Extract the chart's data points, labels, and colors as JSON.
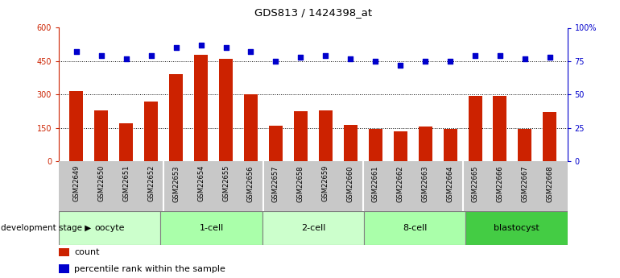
{
  "title": "GDS813 / 1424398_at",
  "samples": [
    "GSM22649",
    "GSM22650",
    "GSM22651",
    "GSM22652",
    "GSM22653",
    "GSM22654",
    "GSM22655",
    "GSM22656",
    "GSM22657",
    "GSM22658",
    "GSM22659",
    "GSM22660",
    "GSM22661",
    "GSM22662",
    "GSM22663",
    "GSM22664",
    "GSM22665",
    "GSM22666",
    "GSM22667",
    "GSM22668"
  ],
  "counts": [
    315,
    230,
    170,
    270,
    390,
    480,
    460,
    300,
    160,
    225,
    230,
    165,
    145,
    135,
    155,
    145,
    295,
    295,
    145,
    220
  ],
  "percentiles": [
    82,
    79,
    77,
    79,
    85,
    87,
    85,
    82,
    75,
    78,
    79,
    77,
    75,
    72,
    75,
    75,
    79,
    79,
    77,
    78
  ],
  "groups": [
    {
      "name": "oocyte",
      "start": 0,
      "end": 3,
      "color": "#ccffcc"
    },
    {
      "name": "1-cell",
      "start": 4,
      "end": 7,
      "color": "#aaffaa"
    },
    {
      "name": "2-cell",
      "start": 8,
      "end": 11,
      "color": "#ccffcc"
    },
    {
      "name": "8-cell",
      "start": 12,
      "end": 15,
      "color": "#aaffaa"
    },
    {
      "name": "blastocyst",
      "start": 16,
      "end": 19,
      "color": "#44cc44"
    }
  ],
  "bar_color": "#cc2200",
  "dot_color": "#0000cc",
  "ylim_left": [
    0,
    600
  ],
  "ylim_right": [
    0,
    100
  ],
  "yticks_left": [
    0,
    150,
    300,
    450,
    600
  ],
  "yticks_right": [
    0,
    25,
    50,
    75,
    100
  ],
  "ytick_labels_right": [
    "0",
    "25",
    "50",
    "75",
    "100%"
  ],
  "grid_vals": [
    150,
    300,
    450
  ],
  "left_axis_color": "#cc2200",
  "right_axis_color": "#0000cc",
  "legend_count_label": "count",
  "legend_pct_label": "percentile rank within the sample",
  "stage_label": "development stage",
  "sample_bg_color": "#c8c8c8",
  "background_color": "#ffffff"
}
